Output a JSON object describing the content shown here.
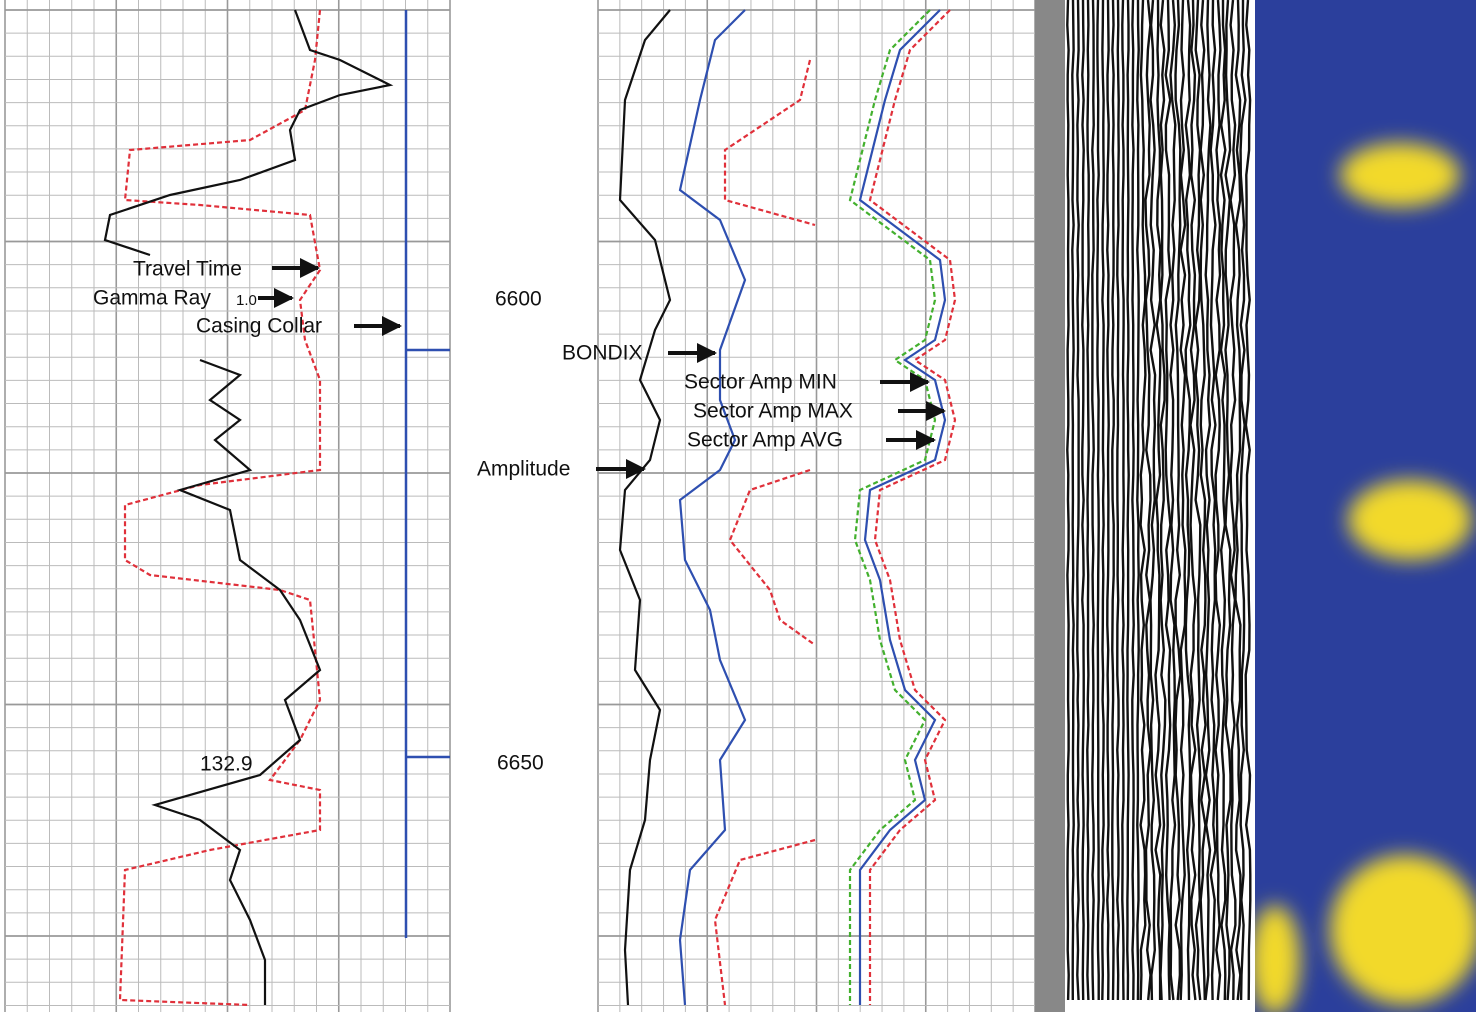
{
  "tracks": {
    "depth_labels": [
      "6600",
      "6650"
    ],
    "labels": {
      "travel_time": "Travel Time",
      "gamma_ray": "Gamma Ray",
      "gamma_ray_scale": "1.0",
      "casing_collar": "Casing Collar",
      "bondix": "BONDIX",
      "sector_amp_min": "Sector Amp MIN",
      "sector_amp_max": "Sector Amp MAX",
      "sector_amp_avg": "Sector Amp AVG",
      "amplitude": "Amplitude"
    },
    "annotation": "132.9"
  }
}
